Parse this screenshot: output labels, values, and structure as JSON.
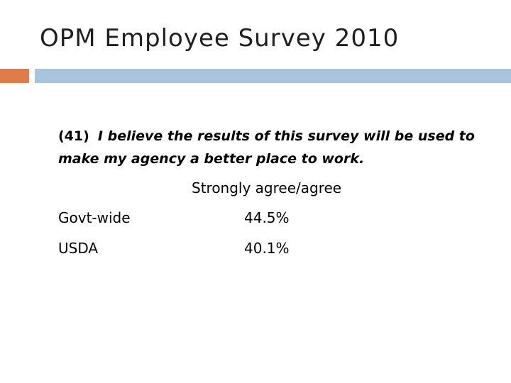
{
  "slide": {
    "title": "OPM Employee Survey 2010",
    "question_number": "(41)",
    "question_text": "I believe the results of this survey will be used to make my agency a better place to work.",
    "column_header": "Strongly agree/agree",
    "rows": [
      {
        "label": "Govt-wide",
        "value": "44.5%"
      },
      {
        "label": "USDA",
        "value": "40.1%"
      }
    ]
  },
  "colors": {
    "accent_orange": "#e07b4a",
    "accent_blue": "#a9c4dd"
  }
}
